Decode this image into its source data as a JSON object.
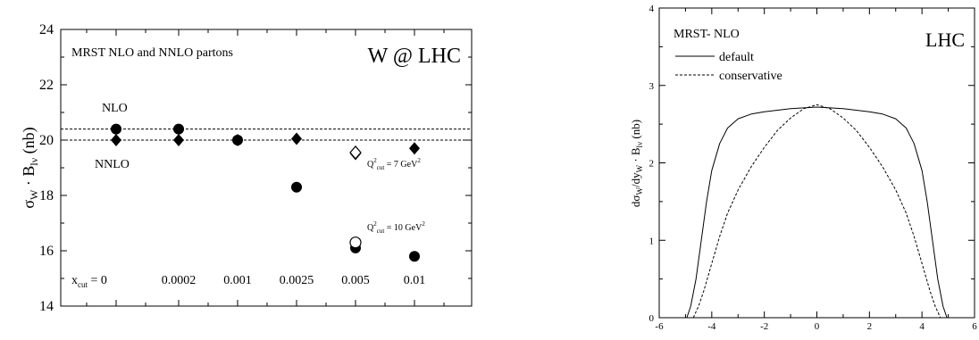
{
  "chart_data": [
    {
      "type": "scatter",
      "title": "W @ LHC",
      "subtitle": "MRST NLO and NNLO partons",
      "ylabel": "σ_W · B_lν (nb)",
      "ylim": [
        14,
        24
      ],
      "yticks": [
        14,
        16,
        18,
        20,
        22,
        24
      ],
      "xcut_prefix": "x",
      "xcut_sub": "cut",
      "xcut_suffix": " = 0",
      "categories": [
        "0",
        "0.0002",
        "0.001",
        "0.0025",
        "0.005",
        "0.01"
      ],
      "reference_lines": [
        {
          "label": "NLO",
          "value": 20.4
        },
        {
          "label": "NNLO",
          "value": 20.0
        }
      ],
      "series": [
        {
          "marker": "filled-circle",
          "values": [
            20.4,
            20.4,
            20.0,
            18.3,
            16.1,
            15.8
          ]
        },
        {
          "marker": "filled-diamond",
          "values": [
            20.0,
            20.0,
            20.0,
            20.05,
            19.5,
            19.7
          ]
        },
        {
          "marker": "open-diamond",
          "values": [
            null,
            null,
            null,
            null,
            19.55,
            null
          ]
        },
        {
          "marker": "open-circle",
          "values": [
            null,
            null,
            null,
            null,
            16.3,
            null
          ]
        }
      ],
      "annotations": [
        {
          "text": "Q²cut = 7 GeV²",
          "q": "Q",
          "sup": "2",
          "sub": "cut",
          "rest": " = 7 GeV",
          "unit_sup": "2"
        },
        {
          "text": "Q²cut = 10 GeV²",
          "q": "Q",
          "sup": "2",
          "sub": "cut",
          "rest": " = 10 GeV",
          "unit_sup": "2"
        }
      ]
    },
    {
      "type": "line",
      "title": "LHC",
      "subtitle": "MRST- NLO",
      "ylabel": "dσ_W/dy_W · B_lν (nb)",
      "xlim": [
        -6,
        6
      ],
      "ylim": [
        0,
        4
      ],
      "xticks": [
        -6,
        -4,
        -2,
        0,
        2,
        4,
        6
      ],
      "yticks": [
        0,
        1,
        2,
        3,
        4
      ],
      "series": [
        {
          "name": "default",
          "style": "solid",
          "x": [
            -4.95,
            -4.8,
            -4.6,
            -4.4,
            -4.2,
            -4.0,
            -3.7,
            -3.4,
            -3.0,
            -2.5,
            -2.0,
            -1.5,
            -1.0,
            -0.5,
            0.0,
            0.5,
            1.0,
            1.5,
            2.0,
            2.5,
            3.0,
            3.4,
            3.7,
            4.0,
            4.2,
            4.4,
            4.6,
            4.8,
            4.95
          ],
          "y": [
            0.0,
            0.15,
            0.5,
            1.0,
            1.5,
            1.9,
            2.25,
            2.45,
            2.57,
            2.63,
            2.66,
            2.68,
            2.7,
            2.71,
            2.72,
            2.71,
            2.7,
            2.68,
            2.66,
            2.63,
            2.57,
            2.45,
            2.25,
            1.9,
            1.5,
            1.0,
            0.5,
            0.15,
            0.0
          ]
        },
        {
          "name": "conservative",
          "style": "dashed",
          "x": [
            -4.7,
            -4.5,
            -4.3,
            -4.0,
            -3.7,
            -3.4,
            -3.0,
            -2.5,
            -2.0,
            -1.5,
            -1.0,
            -0.5,
            0.0,
            0.5,
            1.0,
            1.5,
            2.0,
            2.5,
            3.0,
            3.4,
            3.7,
            4.0,
            4.3,
            4.5,
            4.7
          ],
          "y": [
            0.0,
            0.15,
            0.35,
            0.7,
            1.05,
            1.35,
            1.65,
            1.95,
            2.2,
            2.42,
            2.58,
            2.7,
            2.75,
            2.7,
            2.58,
            2.42,
            2.2,
            1.95,
            1.65,
            1.35,
            1.05,
            0.7,
            0.35,
            0.15,
            0.0
          ]
        }
      ]
    }
  ]
}
